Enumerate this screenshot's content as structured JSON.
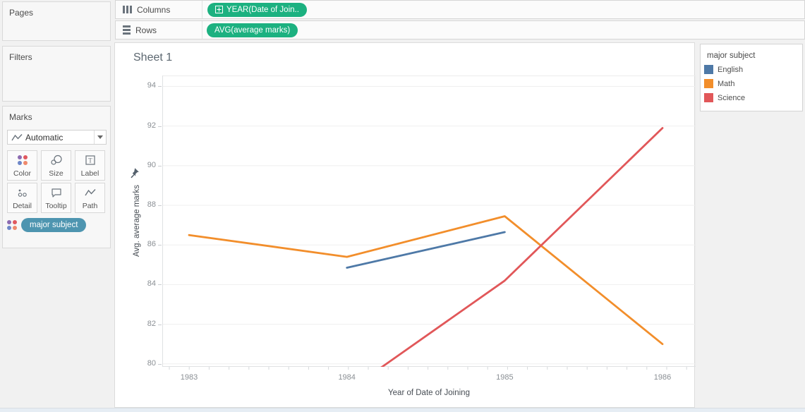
{
  "left_panel": {
    "pages_label": "Pages",
    "filters_label": "Filters",
    "marks": {
      "label": "Marks",
      "mark_type": "Automatic",
      "buttons": [
        {
          "label": "Color"
        },
        {
          "label": "Size"
        },
        {
          "label": "Label"
        },
        {
          "label": "Detail"
        },
        {
          "label": "Tooltip"
        },
        {
          "label": "Path"
        }
      ],
      "pill": "major subject"
    }
  },
  "shelves": {
    "columns": {
      "label": "Columns",
      "pill": "YEAR(Date of Join.."
    },
    "rows": {
      "label": "Rows",
      "pill": "AVG(average marks)"
    }
  },
  "legend": {
    "title": "major subject",
    "items": [
      {
        "label": "English",
        "color": "#4E79A7"
      },
      {
        "label": "Math",
        "color": "#F28E2B"
      },
      {
        "label": "Science",
        "color": "#E15759"
      }
    ]
  },
  "chart_data": {
    "type": "line",
    "title": "Sheet 1",
    "xlabel": "Year of Date of Joining",
    "ylabel": "Avg. average marks",
    "x_ticks": [
      1983,
      1984,
      1985,
      1986
    ],
    "y_ticks": [
      80,
      82,
      84,
      86,
      88,
      90,
      92,
      94
    ],
    "xlim": [
      1982.83,
      1986.21
    ],
    "ylim": [
      79.85,
      94.55
    ],
    "grid": true,
    "legend_position": "right",
    "legend_title": "major subject",
    "series": [
      {
        "name": "English",
        "color": "#4E79A7",
        "points": [
          [
            1984,
            84.85
          ],
          [
            1985,
            86.65
          ]
        ]
      },
      {
        "name": "Math",
        "color": "#F28E2B",
        "points": [
          [
            1983,
            86.5
          ],
          [
            1984,
            85.4
          ],
          [
            1985,
            87.45
          ],
          [
            1986,
            81.0
          ]
        ]
      },
      {
        "name": "Science",
        "color": "#E15759",
        "points": [
          [
            1984,
            78.6
          ],
          [
            1985,
            84.2
          ],
          [
            1986,
            91.9
          ]
        ]
      }
    ]
  },
  "colors": {
    "measure_pill_green": "#1CB180",
    "marks_dimension_pill": "#4E95B0"
  }
}
